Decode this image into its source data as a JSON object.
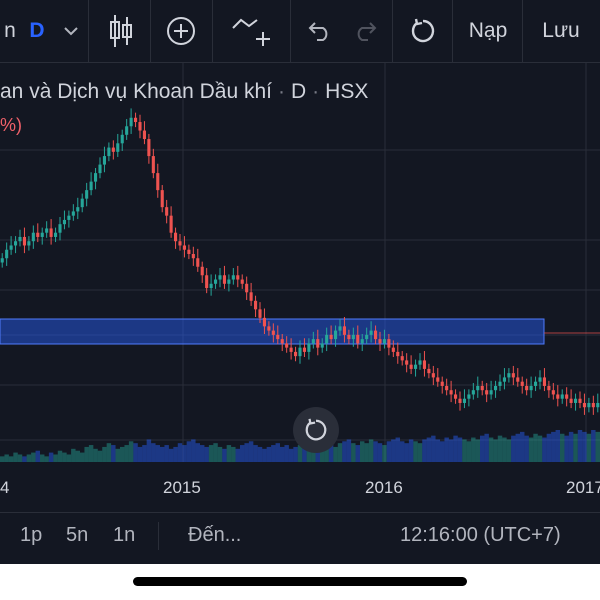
{
  "toolbar": {
    "symbol_fragment": "n",
    "interval": "D",
    "load_label": "Nạp",
    "save_label": "Lưu"
  },
  "legend": {
    "name": "an và Dịch vụ Khoan Dầu khí",
    "interval": "D",
    "exchange": "HSX",
    "change_fragment": "%)"
  },
  "bottom": {
    "range_1": "1p",
    "range_2": "5n",
    "range_3": "1n",
    "goto_label": "Đến...",
    "time_label": "12:16:00 (UTC+7)"
  },
  "colors": {
    "up": "#26a69a",
    "down": "#ef5350",
    "background": "#131722",
    "zone": "#2962ff"
  },
  "chart_data": {
    "type": "candlestick",
    "x_ticks": [
      "4",
      "2015",
      "2016",
      "2017"
    ],
    "closes": [
      52,
      54,
      55,
      56,
      57,
      55,
      56,
      58,
      57,
      58,
      59,
      57,
      58,
      60,
      61,
      62,
      63,
      64,
      66,
      68,
      70,
      72,
      74,
      76,
      78,
      77,
      79,
      81,
      83,
      85,
      84,
      82,
      80,
      76,
      72,
      68,
      64,
      62,
      58,
      56,
      55,
      54,
      53,
      52,
      50,
      48,
      45,
      46,
      47,
      48,
      46,
      47,
      48,
      47,
      46,
      44,
      42,
      40,
      38,
      36,
      35,
      34,
      33,
      32,
      31,
      30,
      29,
      31,
      30,
      32,
      33,
      31,
      32,
      34,
      33,
      35,
      36,
      34,
      33,
      34,
      32,
      33,
      34,
      35,
      33,
      32,
      33,
      31,
      30,
      29,
      28,
      27,
      26,
      27,
      28,
      26,
      25,
      24,
      23,
      22,
      21,
      20,
      19,
      18,
      19,
      20,
      21,
      22,
      21,
      20,
      21,
      22,
      23,
      24,
      25,
      24,
      23,
      22,
      21,
      22,
      23,
      24,
      22,
      21,
      20,
      19,
      20,
      19,
      18,
      19,
      18,
      17,
      18,
      17,
      18
    ],
    "volumes": [
      3,
      4,
      3,
      5,
      4,
      3,
      4,
      5,
      6,
      4,
      3,
      5,
      4,
      6,
      5,
      4,
      7,
      6,
      5,
      8,
      9,
      7,
      6,
      8,
      10,
      9,
      7,
      8,
      9,
      11,
      10,
      8,
      9,
      12,
      10,
      9,
      8,
      9,
      7,
      8,
      10,
      9,
      11,
      12,
      10,
      9,
      8,
      9,
      10,
      8,
      7,
      9,
      8,
      7,
      9,
      10,
      11,
      9,
      8,
      7,
      8,
      9,
      10,
      8,
      9,
      7,
      8,
      9,
      10,
      11,
      9,
      8,
      9,
      10,
      9,
      8,
      10,
      11,
      12,
      10,
      9,
      11,
      10,
      12,
      11,
      10,
      9,
      11,
      12,
      13,
      11,
      10,
      12,
      11,
      10,
      12,
      13,
      14,
      12,
      11,
      13,
      12,
      14,
      13,
      12,
      11,
      13,
      12,
      14,
      15,
      13,
      12,
      14,
      13,
      12,
      14,
      15,
      16,
      14,
      13,
      15,
      14,
      13,
      15,
      16,
      17,
      15,
      14,
      16,
      15,
      17,
      16,
      15,
      17,
      16
    ]
  }
}
